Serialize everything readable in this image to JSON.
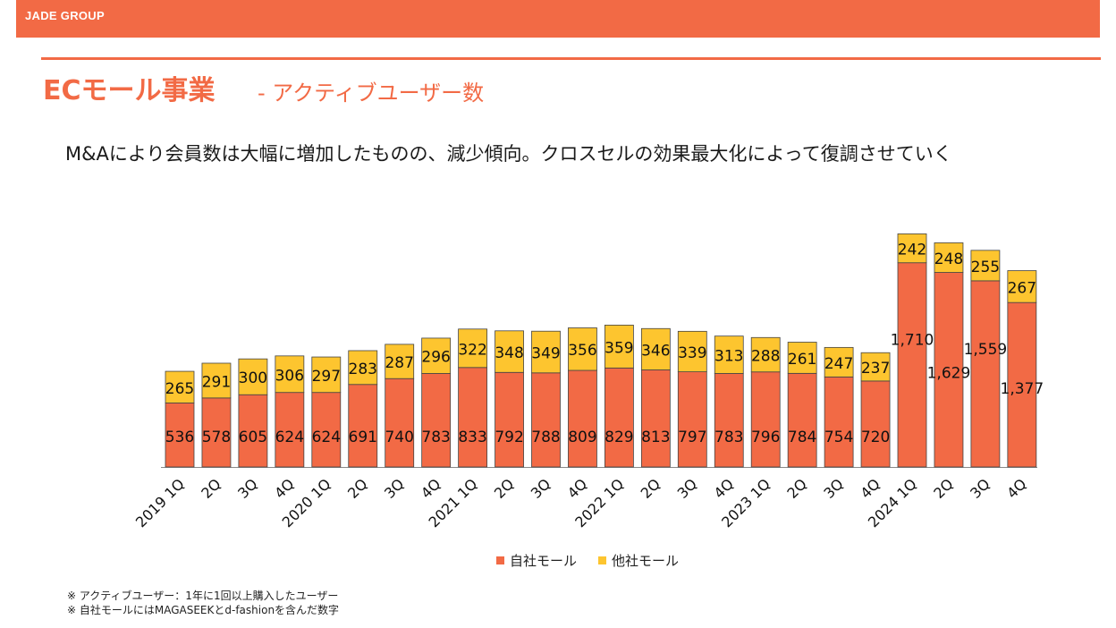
{
  "header": {
    "brand": "JADE GROUP"
  },
  "page": {
    "title": "ECモール事業",
    "subtitle": "- アクティブユーザー数",
    "headline": "M&Aにより会員数は大幅に増加したものの、減少傾向。クロスセルの効果最大化によって復調させていく"
  },
  "legend": {
    "own": "自社モール",
    "other": "他社モール"
  },
  "notes": [
    "※ アクティブユーザー：1年に1回以上購入したユーザー",
    "※ 自社モールにはMAGASEEKとd-fashionを含んだ数字"
  ],
  "colors": {
    "accent": "#f26a45",
    "own": "#f26a45",
    "other": "#fdc52f"
  },
  "chart_data": {
    "type": "bar",
    "stacked": true,
    "categories": [
      "2019 1Q",
      "2Q",
      "3Q",
      "4Q",
      "2020 1Q",
      "2Q",
      "3Q",
      "4Q",
      "2021 1Q",
      "2Q",
      "3Q",
      "4Q",
      "2022 1Q",
      "2Q",
      "3Q",
      "4Q",
      "2023 1Q",
      "2Q",
      "3Q",
      "4Q",
      "2024 1Q",
      "2Q",
      "3Q",
      "4Q"
    ],
    "tick_labels": [
      "2019 1Q",
      "2Q",
      "3Q",
      "4Q",
      "2020 1Q",
      "2Q",
      "3Q",
      "4Q",
      "2021  1Q",
      "2Q",
      "3Q",
      "4Q",
      "2022  1Q",
      "2Q",
      "3Q",
      "4Q",
      "2023  1Q",
      "2Q",
      "3Q",
      "4Q",
      "2024 1Q",
      "2Q",
      "3Q",
      "4Q"
    ],
    "series": [
      {
        "name": "自社モール",
        "values": [
          536,
          578,
          605,
          624,
          624,
          691,
          740,
          783,
          833,
          792,
          788,
          809,
          829,
          813,
          797,
          783,
          796,
          784,
          754,
          720,
          1710,
          1629,
          1559,
          1377
        ],
        "labels": [
          "536",
          "578",
          "605",
          "624",
          "624",
          "691",
          "740",
          "783",
          "833",
          "792",
          "788",
          "809",
          "829",
          "813",
          "797",
          "783",
          "796",
          "784",
          "754",
          "720",
          "1,710",
          "1,629",
          "1,559",
          "1,377"
        ]
      },
      {
        "name": "他社モール",
        "values": [
          265,
          291,
          300,
          306,
          297,
          283,
          287,
          296,
          322,
          348,
          349,
          356,
          359,
          346,
          339,
          313,
          288,
          261,
          247,
          237,
          242,
          248,
          255,
          267
        ],
        "labels": [
          "265",
          "291",
          "300",
          "306",
          "297",
          "283",
          "287",
          "296",
          "322",
          "348",
          "349",
          "356",
          "359",
          "346",
          "339",
          "313",
          "288",
          "261",
          "247",
          "237",
          "242",
          "248",
          "255",
          "267"
        ]
      }
    ],
    "grid": false,
    "legend_position": "bottom"
  }
}
